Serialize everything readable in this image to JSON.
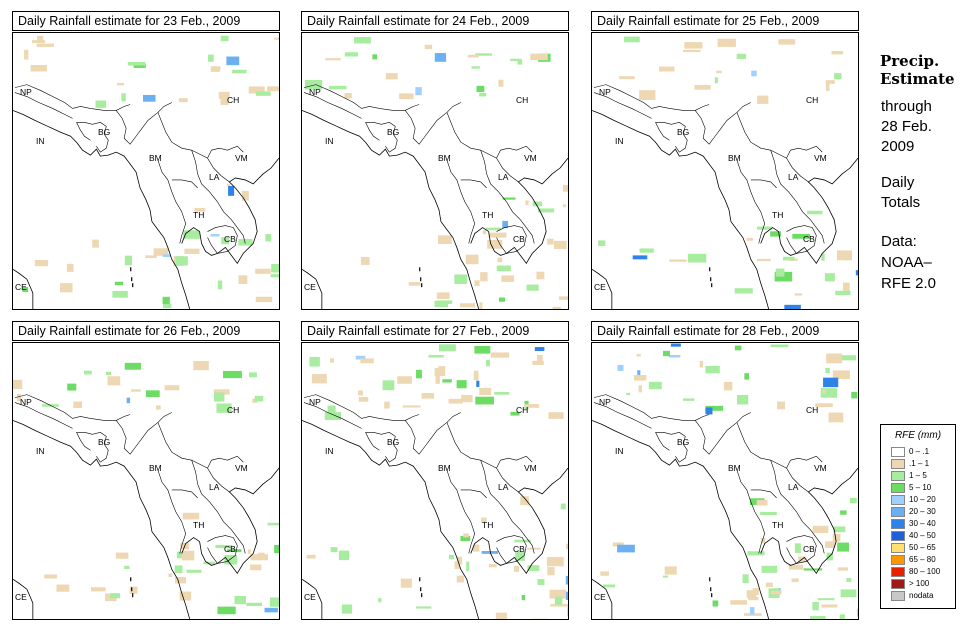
{
  "panels": [
    {
      "title": "Daily Rainfall estimate for  23 Feb., 2009",
      "intensity": 1.0,
      "seed": 11
    },
    {
      "title": "Daily Rainfall estimate for  24 Feb., 2009",
      "intensity": 1.0,
      "seed": 23
    },
    {
      "title": "Daily Rainfall estimate for  25 Feb., 2009",
      "intensity": 0.8,
      "seed": 37
    },
    {
      "title": "Daily Rainfall estimate for  26 Feb., 2009",
      "intensity": 1.0,
      "seed": 41
    },
    {
      "title": "Daily Rainfall estimate for  27 Feb., 2009",
      "intensity": 1.4,
      "seed": 53
    },
    {
      "title": "Daily Rainfall estimate for  28 Feb., 2009",
      "intensity": 1.4,
      "seed": 67
    }
  ],
  "country_labels": [
    {
      "text": "NP"
    },
    {
      "text": "CH"
    },
    {
      "text": "IN"
    },
    {
      "text": "BG"
    },
    {
      "text": "BM"
    },
    {
      "text": "VM"
    },
    {
      "text": "LA"
    },
    {
      "text": "TH"
    },
    {
      "text": "CB"
    },
    {
      "text": "CE"
    }
  ],
  "sidebar": {
    "title_line1": "Precip.",
    "title_line2": "Estimate",
    "through": "through",
    "date_line1": "28 Feb.",
    "date_line2": "2009",
    "daily_line1": "Daily",
    "daily_line2": "Totals",
    "data_line1": "Data:",
    "data_line2": "NOAA–",
    "data_line3": "RFE 2.0"
  },
  "legend": {
    "title": "RFE (mm)",
    "items": [
      {
        "label": "0 – .1",
        "color": "#ffffff"
      },
      {
        "label": ".1 – 1",
        "color": "#eed8b4"
      },
      {
        "label": "1 – 5",
        "color": "#a8eca0"
      },
      {
        "label": "5 – 10",
        "color": "#6cdc64"
      },
      {
        "label": "10 – 20",
        "color": "#a0d0ff"
      },
      {
        "label": "20 – 30",
        "color": "#6cb0f4"
      },
      {
        "label": "30 – 40",
        "color": "#2f82e8"
      },
      {
        "label": "40 – 50",
        "color": "#1f5fd8"
      },
      {
        "label": "50 – 65",
        "color": "#ffe070"
      },
      {
        "label": "65 – 80",
        "color": "#ff9800"
      },
      {
        "label": "80 – 100",
        "color": "#e82000"
      },
      {
        "label": "> 100",
        "color": "#a01818"
      },
      {
        "label": "nodata",
        "color": "#c8c8c8"
      }
    ]
  }
}
